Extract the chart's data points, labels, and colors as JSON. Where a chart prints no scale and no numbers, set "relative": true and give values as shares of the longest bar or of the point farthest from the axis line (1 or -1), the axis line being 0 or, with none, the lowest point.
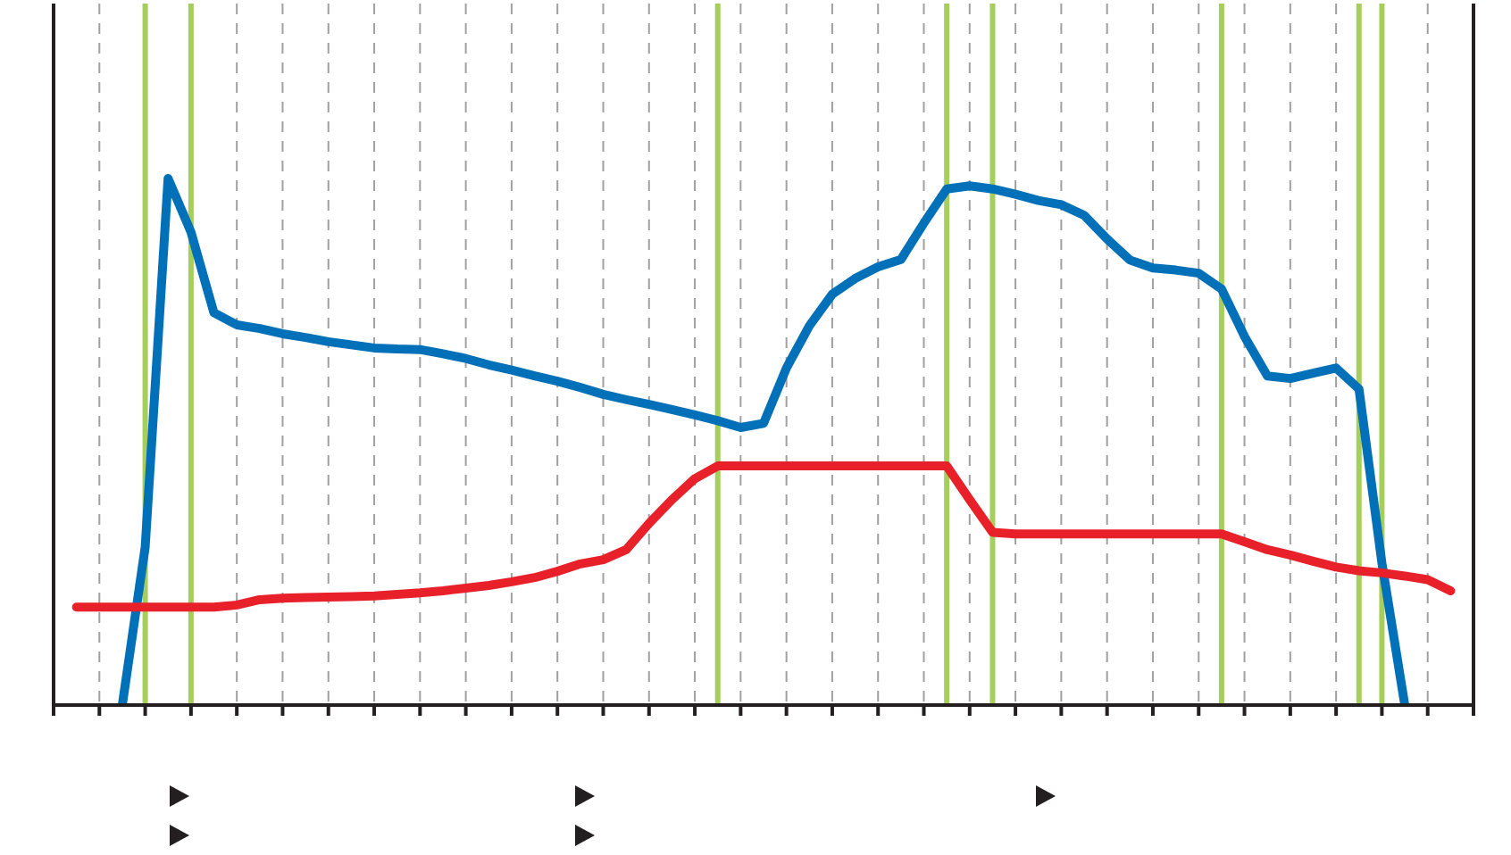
{
  "chart_data": {
    "type": "line",
    "relative": true,
    "grid": "x",
    "line_style": "solid",
    "marker": "none",
    "categories": [
      null,
      null,
      null,
      null,
      null,
      null,
      null,
      null,
      null,
      null,
      null,
      null,
      null,
      null,
      null,
      null,
      null,
      null,
      null,
      null,
      null,
      null,
      null,
      null,
      null,
      null,
      null,
      null,
      null,
      null,
      null,
      null,
      null,
      null,
      null,
      null,
      null,
      null,
      null,
      null,
      null,
      null,
      null,
      null,
      null,
      null,
      null,
      null,
      null,
      null,
      null,
      null,
      null,
      null,
      null,
      null,
      null,
      null,
      null,
      null,
      null,
      null,
      null
    ],
    "series": [
      {
        "color": "#0070b8",
        "values": [
          null,
          null,
          null,
          0,
          0.3,
          1,
          0.898,
          0.745,
          0.722,
          0.715,
          0.705,
          0.698,
          0.69,
          0.684,
          0.678,
          0.676,
          0.675,
          0.667,
          0.658,
          0.646,
          0.636,
          0.625,
          0.615,
          0.603,
          0.59,
          0.58,
          0.571,
          0.561,
          0.551,
          0.54,
          0.527,
          0.535,
          0.64,
          0.72,
          0.78,
          0.81,
          0.832,
          0.846,
          0.915,
          0.98,
          0.986,
          0.98,
          0.97,
          0.958,
          0.95,
          0.93,
          0.885,
          0.845,
          0.83,
          0.826,
          0.82,
          0.79,
          0.7,
          0.625,
          0.62,
          0.63,
          0.64,
          0.6,
          0.27,
          0,
          null,
          null,
          null
        ]
      },
      {
        "color": "#e8202a",
        "values": [
          null,
          0.186,
          0.186,
          0.186,
          0.186,
          0.186,
          0.186,
          0.186,
          0.19,
          0.2,
          0.203,
          0.204,
          0.205,
          0.206,
          0.207,
          0.21,
          0.213,
          0.217,
          0.222,
          0.227,
          0.234,
          0.242,
          0.254,
          0.268,
          0.276,
          0.295,
          0.345,
          0.39,
          0.43,
          0.454,
          0.454,
          0.454,
          0.454,
          0.454,
          0.454,
          0.454,
          0.454,
          0.454,
          0.454,
          0.454,
          0.39,
          0.328,
          0.325,
          0.325,
          0.325,
          0.325,
          0.325,
          0.325,
          0.325,
          0.325,
          0.325,
          0.325,
          0.31,
          0.295,
          0.285,
          0.273,
          0.262,
          0.255,
          0.251,
          0.245,
          0.238,
          0.217,
          null
        ]
      }
    ]
  }
}
